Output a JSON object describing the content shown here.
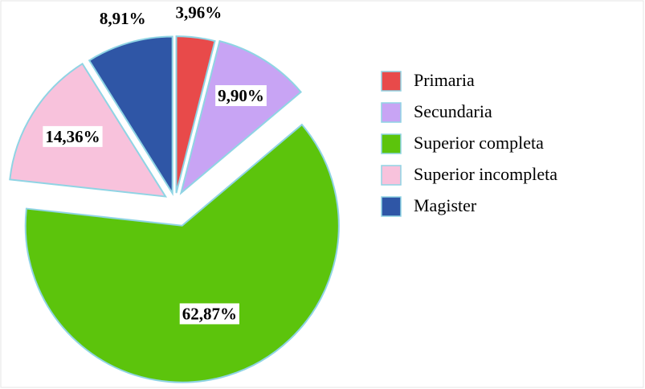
{
  "chart_data": {
    "type": "pie",
    "categories": [
      "Primaria",
      "Secundaria",
      "Superior completa",
      "Superior incompleta",
      "Magister"
    ],
    "values": [
      3.96,
      9.9,
      62.87,
      14.36,
      8.91
    ],
    "value_labels": [
      "3,96%",
      "9,90%",
      "62,87%",
      "14,36%",
      "8,91%"
    ],
    "colors": [
      "#e84a4a",
      "#c8a4f4",
      "#5cc40c",
      "#f8c2dc",
      "#2f56a6"
    ],
    "legend": "right"
  }
}
